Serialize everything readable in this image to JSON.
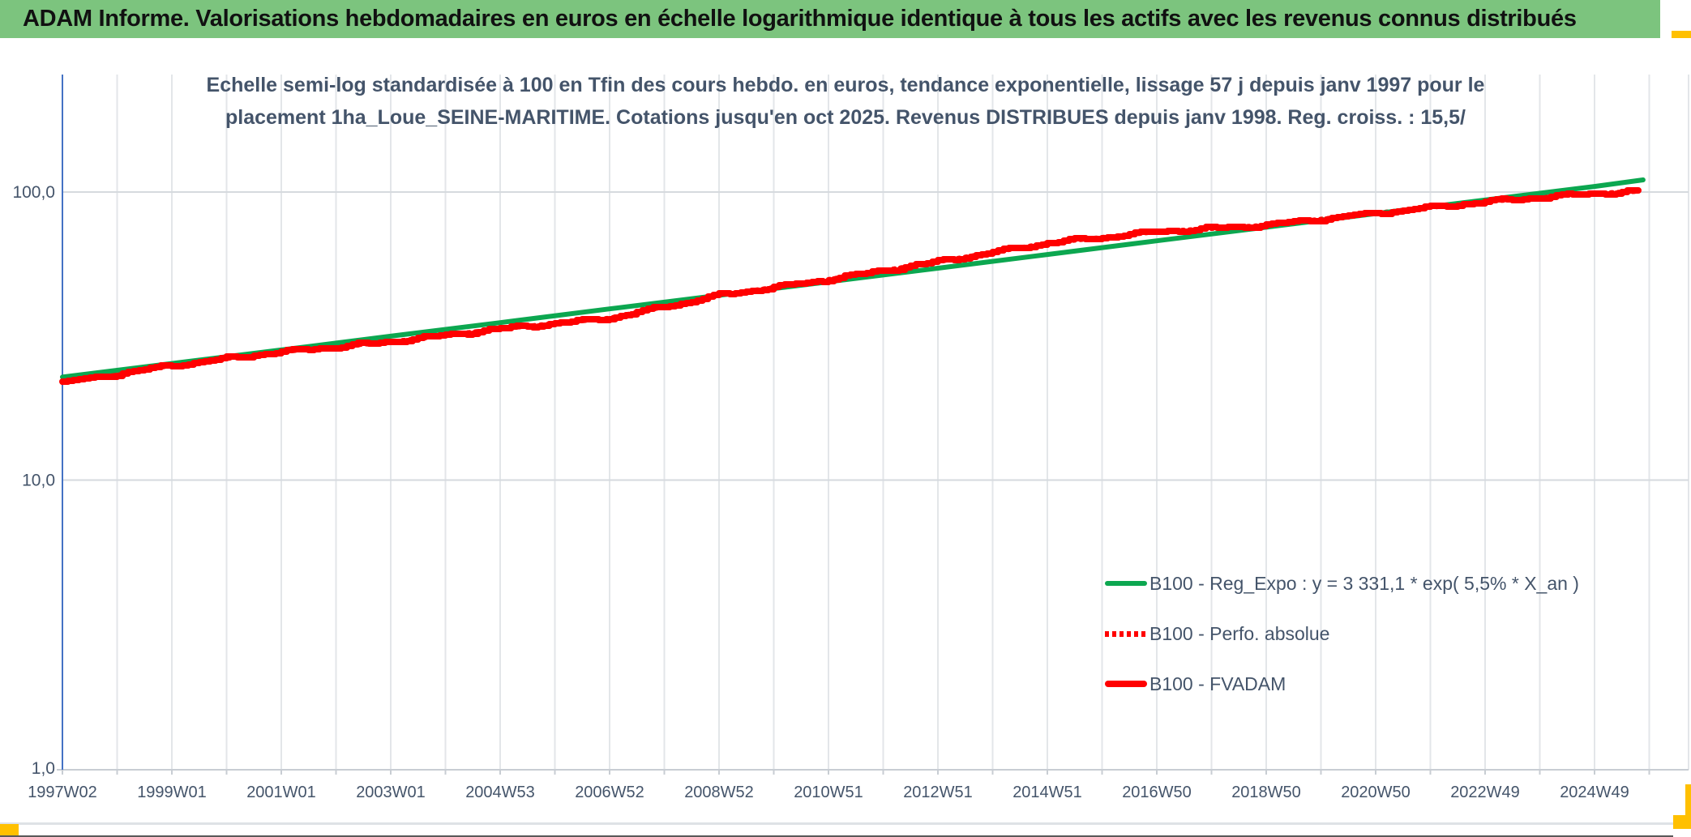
{
  "header": {
    "title": "ADAM Informe. Valorisations hebdomadaires en euros en échelle logarithmique identique à tous les actifs avec les revenus connus distribués"
  },
  "chart": {
    "title_line1": "Echelle semi-log standardisée à 100 en Tfin des cours hebdo. en euros, tendance exponentielle, lissage 57 j depuis janv 1997 pour le",
    "title_line2": "placement 1ha_Loue_SEINE-MARITIME. Cotations jusqu'en oct 2025. Revenus DISTRIBUES depuis janv 1998. Reg. croiss. : 15,5/"
  },
  "chart_data": {
    "type": "line",
    "x_axis": {
      "tick_labels": [
        "1997W02",
        "1999W01",
        "2001W01",
        "2003W01",
        "2004W53",
        "2006W52",
        "2008W52",
        "2010W51",
        "2012W51",
        "2014W51",
        "2016W50",
        "2018W50",
        "2020W50",
        "2022W49",
        "2024W49"
      ],
      "last_data_point": "oct 2025"
    },
    "y_axis": {
      "scale": "log10",
      "tick_labels": [
        "100,0",
        "10,0",
        "1,0"
      ],
      "tick_values": [
        100,
        10,
        1
      ],
      "range": [
        1,
        230
      ],
      "grid": "on"
    },
    "legend_position": "inside lower-right",
    "series": [
      {
        "name": "B100 - Reg_Expo : y = 3 331,1 * exp( 5,5% *  X_an )",
        "color": "#0CA750",
        "style": "solid",
        "values_at_ticks": [
          22.8,
          25.4,
          28.3,
          31.6,
          35.2,
          39.3,
          43.8,
          48.8,
          54.4,
          60.7,
          67.7,
          75.5,
          84.2,
          93.8,
          104.6
        ],
        "end_value": 110.2
      },
      {
        "name": "B100 - Perfo. absolue",
        "color": "#FF0000",
        "style": "dotted",
        "overlaps": "B100 - FVADAM",
        "values_at_ticks": [
          21.8,
          25.0,
          27.9,
          30.2,
          33.5,
          36.5,
          43.8,
          49.7,
          57.3,
          66.5,
          72.8,
          76.7,
          84.5,
          92.5,
          99.0
        ],
        "end_value": 100.7
      },
      {
        "name": "B100 - FVADAM",
        "color": "#FF0000",
        "style": "solid",
        "values_at_ticks": [
          21.8,
          25.0,
          27.9,
          30.2,
          33.5,
          36.5,
          43.8,
          49.7,
          57.3,
          66.5,
          72.8,
          76.7,
          84.5,
          92.5,
          99.0
        ],
        "end_value": 100.7
      }
    ]
  },
  "colors": {
    "header_bg": "#7CC47E",
    "accent_yellow": "#FFC000",
    "title_text": "#44546A",
    "axis_text": "#44546A",
    "grid_minor": "#E3E6E9",
    "grid_major": "#D6DADE",
    "axis_line_blue": "#4472C4",
    "axis_line_gray": "#C8CDD3",
    "series_green": "#0CA750",
    "series_red": "#FF0000",
    "bottom_bar": "#595959"
  }
}
